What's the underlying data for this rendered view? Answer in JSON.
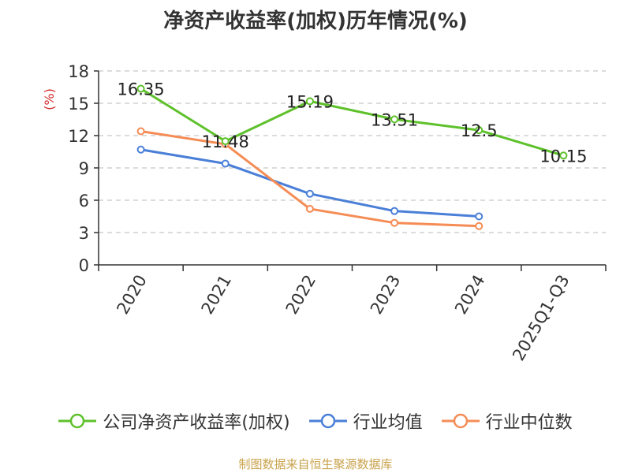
{
  "chart_data": {
    "type": "line",
    "title": "净资产收益率(加权)历年情况(%)",
    "ylabel": "(%)",
    "xlabel": "",
    "categories": [
      "2020",
      "2021",
      "2022",
      "2023",
      "2024",
      "2025Q1-Q3"
    ],
    "ylim": [
      0,
      18
    ],
    "yticks": [
      0,
      3,
      6,
      9,
      12,
      15,
      18
    ],
    "grid": true,
    "legend_position": "bottom",
    "series": [
      {
        "name": "公司净资产收益率(加权)",
        "color": "#5ec12b",
        "values": [
          16.35,
          11.48,
          15.19,
          13.51,
          12.5,
          10.15
        ],
        "labels": [
          "16.35",
          "11.48",
          "15.19",
          "13.51",
          "12.5",
          "10.15"
        ]
      },
      {
        "name": "行业均值",
        "color": "#4a7fd8",
        "values": [
          10.7,
          9.4,
          6.6,
          5.0,
          4.5,
          null
        ]
      },
      {
        "name": "行业中位数",
        "color": "#f58c55",
        "values": [
          12.4,
          11.2,
          5.2,
          3.9,
          3.6,
          null
        ]
      }
    ]
  },
  "footer": {
    "source": "制图数据来自恒生聚源数据库"
  }
}
